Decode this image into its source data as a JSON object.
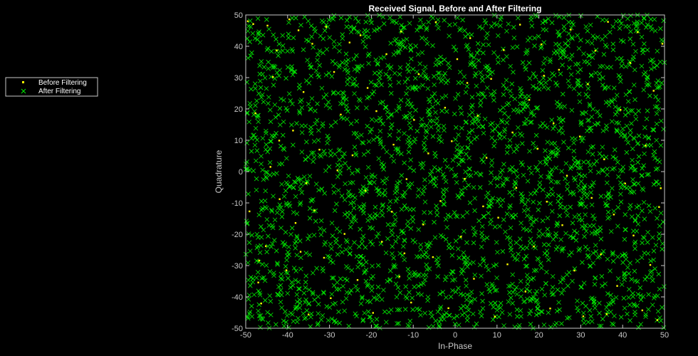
{
  "chart_data": {
    "type": "scatter",
    "title": "Received Signal, Before and After Filtering",
    "xlabel": "In-Phase",
    "ylabel": "Quadrature",
    "xlim": [
      -50,
      50
    ],
    "ylim": [
      -50,
      50
    ],
    "xticks": [
      -50,
      -40,
      -30,
      -20,
      -10,
      0,
      10,
      20,
      30,
      40,
      50
    ],
    "yticks": [
      -50,
      -40,
      -30,
      -20,
      -10,
      0,
      10,
      20,
      30,
      40,
      50
    ],
    "grid": false,
    "legend_position": "left",
    "series": [
      {
        "name": "Before Filtering",
        "marker": "point",
        "color": "#ffff00",
        "points": [
          [
            -49.5,
            48.0
          ],
          [
            -48.2,
            47.1
          ],
          [
            -47.7,
            18.6
          ],
          [
            -49.1,
            -12.7
          ],
          [
            -47.0,
            -35.4
          ],
          [
            -46.3,
            -42.1
          ],
          [
            -44.8,
            46.6
          ],
          [
            -43.5,
            30.2
          ],
          [
            -44.1,
            1.5
          ],
          [
            -45.2,
            -23.8
          ],
          [
            -42.6,
            38.7
          ],
          [
            -41.9,
            -8.8
          ],
          [
            -40.3,
            -31.5
          ],
          [
            -39.6,
            48.6
          ],
          [
            -38.7,
            13.1
          ],
          [
            -38.1,
            -16.4
          ],
          [
            -37.4,
            45.1
          ],
          [
            -36.2,
            25.4
          ],
          [
            -35.5,
            -3.7
          ],
          [
            -35.0,
            -45.6
          ],
          [
            -34.1,
            40.8
          ],
          [
            -33.6,
            -12.4
          ],
          [
            -32.4,
            7.0
          ],
          [
            -31.3,
            -27.5
          ],
          [
            -30.8,
            46.2
          ],
          [
            -29.7,
            -40.4
          ],
          [
            -28.9,
            31.8
          ],
          [
            -28.1,
            0.4
          ],
          [
            -26.4,
            -19.9
          ],
          [
            -25.2,
            41.2
          ],
          [
            -24.5,
            5.2
          ],
          [
            -23.3,
            -34.6
          ],
          [
            -22.6,
            43.5
          ],
          [
            -21.4,
            -6.1
          ],
          [
            -20.9,
            26.7
          ],
          [
            -19.6,
            -45.1
          ],
          [
            -18.8,
            19.3
          ],
          [
            -17.5,
            -22.4
          ],
          [
            -16.4,
            37.5
          ],
          [
            -15.1,
            -12.8
          ],
          [
            -14.7,
            8.6
          ],
          [
            -13.3,
            -33.5
          ],
          [
            -12.9,
            44.7
          ],
          [
            -11.6,
            -2.4
          ],
          [
            -10.5,
            -41.8
          ],
          [
            -9.8,
            16.5
          ],
          [
            -8.7,
            31.1
          ],
          [
            -7.6,
            -16.9
          ],
          [
            -6.4,
            5.8
          ],
          [
            -5.3,
            -27.3
          ],
          [
            -4.6,
            47.7
          ],
          [
            -3.5,
            -9.4
          ],
          [
            -2.4,
            20.4
          ],
          [
            -1.6,
            -43.6
          ],
          [
            -0.8,
            9.7
          ],
          [
            0.5,
            35.9
          ],
          [
            1.4,
            -20.8
          ],
          [
            2.3,
            -2.3
          ],
          [
            3.6,
            42.6
          ],
          [
            4.5,
            -34.2
          ],
          [
            5.4,
            17.8
          ],
          [
            6.7,
            -11.1
          ],
          [
            7.5,
            4.4
          ],
          [
            8.6,
            29.6
          ],
          [
            9.5,
            -46.3
          ],
          [
            10.3,
            -14.7
          ],
          [
            11.6,
            38.8
          ],
          [
            12.5,
            -29.6
          ],
          [
            13.7,
            12.5
          ],
          [
            14.6,
            -5.2
          ],
          [
            15.5,
            46.9
          ],
          [
            16.8,
            -38.3
          ],
          [
            17.7,
            22.9
          ],
          [
            18.8,
            -23.9
          ],
          [
            19.7,
            7.3
          ],
          [
            20.6,
            40.6
          ],
          [
            21.9,
            -9.6
          ],
          [
            22.7,
            -43.7
          ],
          [
            23.5,
            15.4
          ],
          [
            24.8,
            32.5
          ],
          [
            25.6,
            -17.1
          ],
          [
            26.7,
            -1.3
          ],
          [
            27.6,
            45.3
          ],
          [
            28.5,
            -31.6
          ],
          [
            29.8,
            11.2
          ],
          [
            30.6,
            -46.2
          ],
          [
            31.7,
            27.9
          ],
          [
            32.6,
            -8.4
          ],
          [
            33.5,
            38.6
          ],
          [
            34.8,
            -26.4
          ],
          [
            35.6,
            3.9
          ],
          [
            36.5,
            47.8
          ],
          [
            37.9,
            -13.7
          ],
          [
            38.7,
            -36.5
          ],
          [
            39.5,
            19.7
          ],
          [
            40.6,
            -3.8
          ],
          [
            41.8,
            34.7
          ],
          [
            42.6,
            -20.4
          ],
          [
            43.6,
            44.5
          ],
          [
            44.7,
            -44.3
          ],
          [
            45.5,
            8.3
          ],
          [
            46.6,
            -29.8
          ],
          [
            47.4,
            25.8
          ],
          [
            48.7,
            -11.3
          ],
          [
            49.5,
            40.8
          ],
          [
            49.1,
            -5.3
          ],
          [
            48.3,
            -47.4
          ],
          [
            -46.8,
            -28.4
          ],
          [
            -42.0,
            9.9
          ],
          [
            -36.9,
            -25.6
          ],
          [
            -27.3,
            18.2
          ],
          [
            -12.1,
            -26.1
          ],
          [
            2.9,
            28.3
          ],
          [
            21.2,
            30.6
          ],
          [
            36.2,
            -45.5
          ]
        ]
      },
      {
        "name": "After Filtering",
        "marker": "x",
        "color": "#00ee00",
        "count": 2600,
        "seed": 9173
      }
    ]
  }
}
